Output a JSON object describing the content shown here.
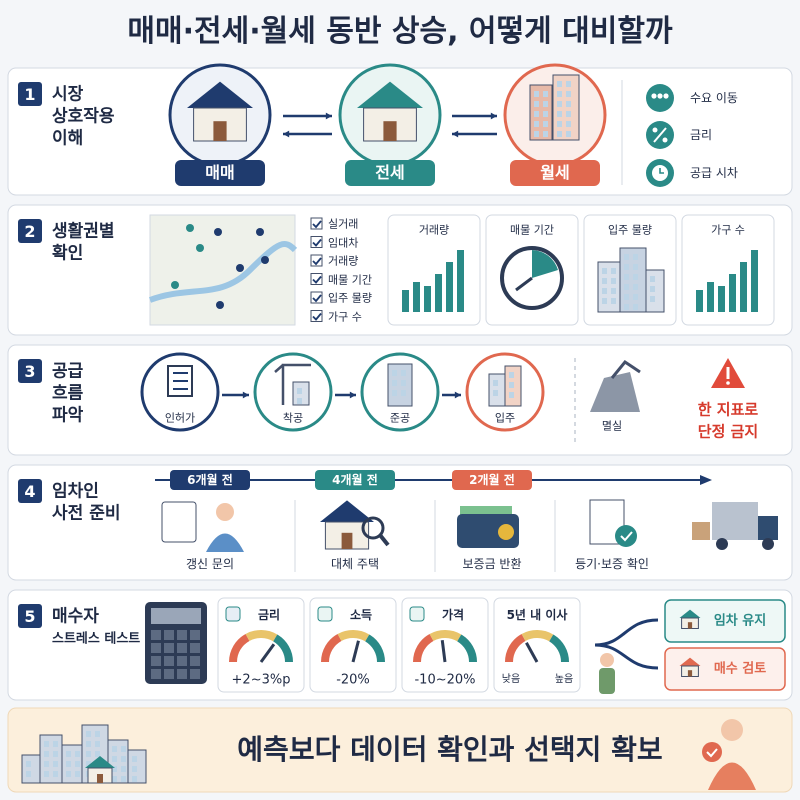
{
  "title": "매매·전세·월세 동반 상승, 어떻게 대비할까",
  "sections": [
    {
      "number": "1",
      "title_lines": [
        "시장",
        "상호작용",
        "이해"
      ],
      "stages": [
        "매매",
        "전세",
        "월세"
      ],
      "factors": [
        "수요 이동",
        "금리",
        "공급 시차"
      ]
    },
    {
      "number": "2",
      "title_lines": [
        "생활권별",
        "확인"
      ],
      "checklist": [
        "실거래",
        "임대차",
        "거래량",
        "매물 기간",
        "입주 물량",
        "가구 수"
      ],
      "cards": [
        "거래량",
        "매물 기간",
        "입주 물량",
        "가구 수"
      ]
    },
    {
      "number": "3",
      "title_lines": [
        "공급",
        "흐름",
        "파악"
      ],
      "steps": [
        "인허가",
        "착공",
        "준공",
        "입주",
        "멸실"
      ],
      "warning_lines": [
        "한 지표로",
        "단정 금지"
      ]
    },
    {
      "number": "4",
      "title_lines": [
        "임차인",
        "사전 준비"
      ],
      "timeline": [
        "6개월 전",
        "4개월 전",
        "2개월 전"
      ],
      "tasks": [
        "갱신 문의",
        "대체 주택",
        "보증금 반환",
        "등기·보증 확인"
      ]
    },
    {
      "number": "5",
      "title_lines": [
        "매수자",
        "스트레스 테스트"
      ],
      "tests": [
        {
          "label": "금리",
          "value": "+2~3%p"
        },
        {
          "label": "소득",
          "value": "-20%"
        },
        {
          "label": "가격",
          "value": "-10~20%"
        },
        {
          "label": "5년 내 이사",
          "low": "낮음",
          "high": "높음"
        }
      ],
      "outcomes": [
        "임차 유지",
        "매수 검토"
      ]
    }
  ],
  "footer": "예측보다 데이터 확인과 선택지 확보"
}
